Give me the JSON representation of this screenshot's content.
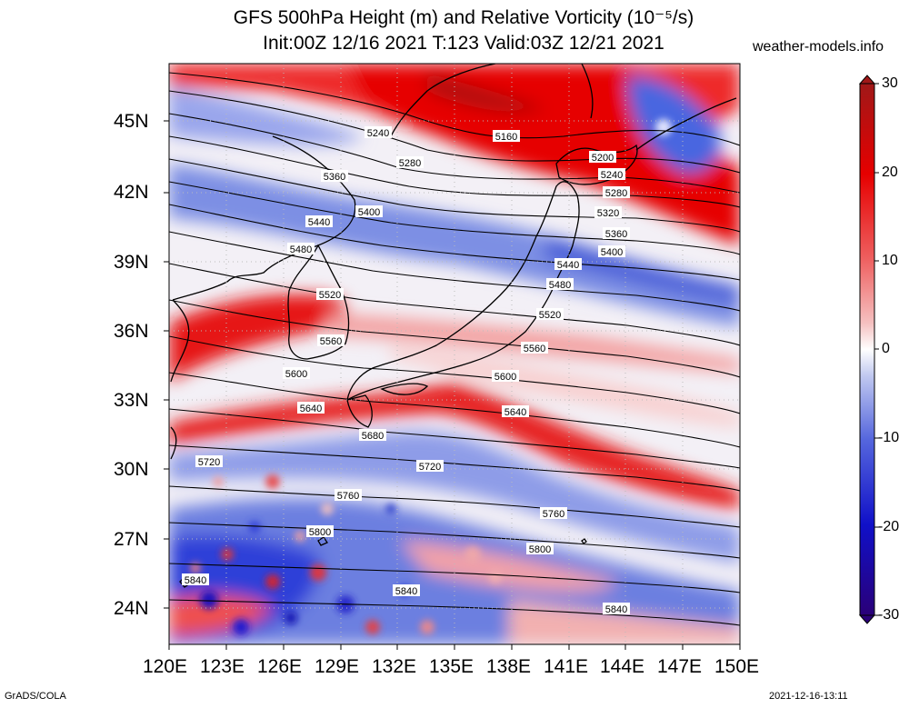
{
  "title": {
    "line1": "GFS 500hPa Height (m) and Relative Vorticity (10⁻⁵/s)",
    "line2": "Init:00Z 12/16 2021 T:123 Valid:03Z 12/21 2021"
  },
  "site": "weather-models.info",
  "footer": {
    "left": "GrADS/COLA",
    "right": "2021-12-16-13:11"
  },
  "lat_labels": [
    "45N",
    "42N",
    "39N",
    "36N",
    "33N",
    "30N",
    "27N",
    "24N"
  ],
  "lon_labels": [
    "120E",
    "123E",
    "126E",
    "129E",
    "132E",
    "135E",
    "138E",
    "141E",
    "144E",
    "147E",
    "150E"
  ],
  "colorbar": {
    "ticks": [
      "30",
      "20",
      "10",
      "0",
      "-10",
      "-20",
      "-30"
    ],
    "colors": {
      "max": "#b22222",
      "red": "#e60000",
      "pink": "#f5a0a0",
      "white": "#ffffff",
      "lightblue": "#a8b4ee",
      "blue": "#1c1cd6",
      "min": "#2a0078"
    }
  },
  "contour_labels": [
    "5160",
    "5200",
    "5240",
    "5280",
    "5320",
    "5360",
    "5400",
    "5440",
    "5480",
    "5520",
    "5560",
    "5600",
    "5640",
    "5680",
    "5720",
    "5760",
    "5800",
    "5840"
  ],
  "contour_label_instances": [
    "5240",
    "5160",
    "5200",
    "5280",
    "5240",
    "5360",
    "5280",
    "5400",
    "5320",
    "5440",
    "5360",
    "5480",
    "5400",
    "5440",
    "5520",
    "5480",
    "5520",
    "5560",
    "5560",
    "5600",
    "5600",
    "5640",
    "5640",
    "5680",
    "5720",
    "5720",
    "5760",
    "5760",
    "5800",
    "5800",
    "5840",
    "5840",
    "5840"
  ]
}
